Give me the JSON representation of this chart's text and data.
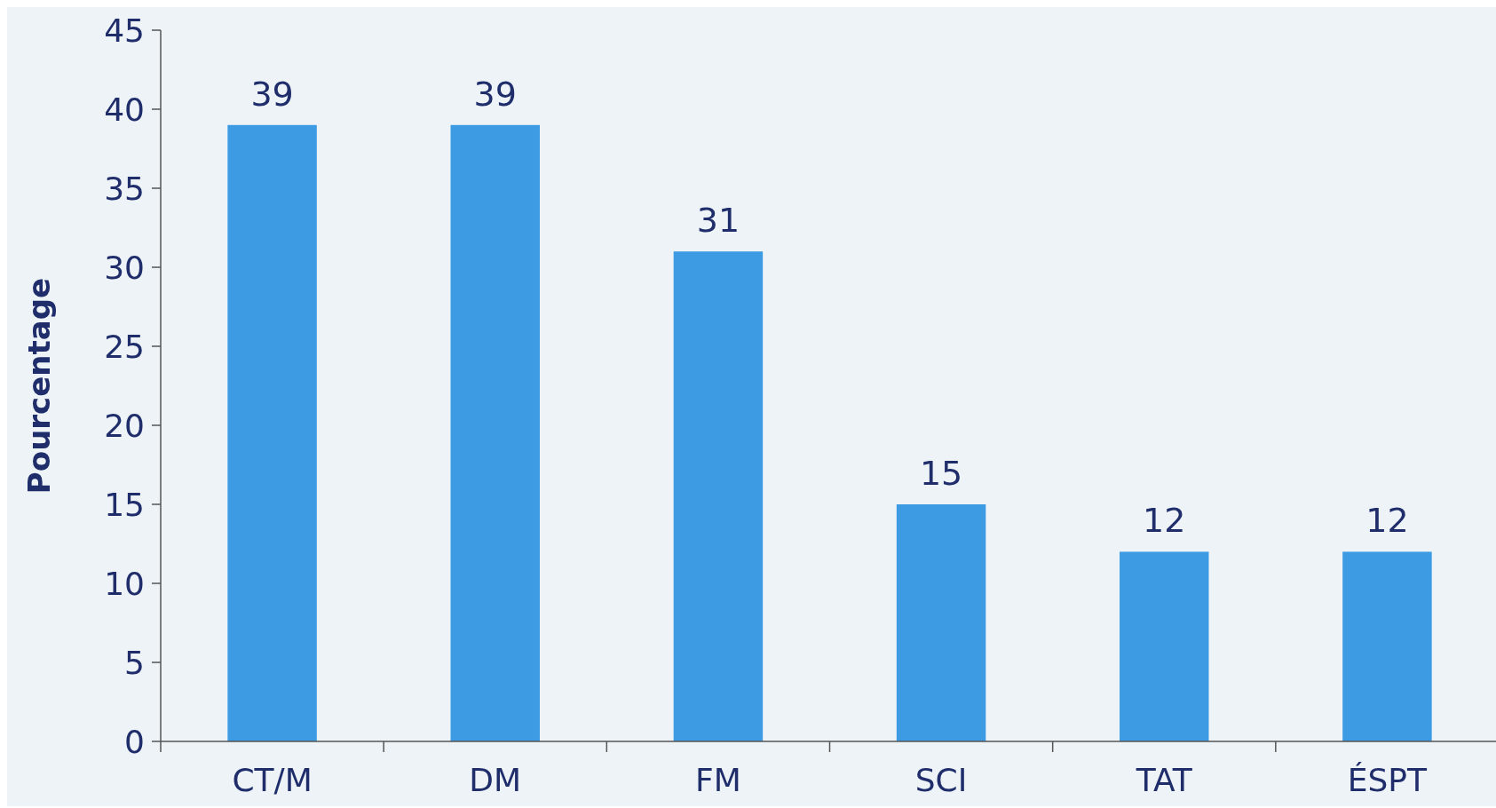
{
  "chart_data": {
    "type": "bar",
    "ylabel": "Pourcentage",
    "categories": [
      "CT/M",
      "DM",
      "FM",
      "SCI",
      "TAT",
      "ÉSPT"
    ],
    "values": [
      39,
      39,
      31,
      15,
      12,
      12
    ],
    "color": "#3d9be3",
    "ylim": [
      0,
      45
    ],
    "yticks": [
      0,
      5,
      10,
      15,
      20,
      25,
      30,
      35,
      40,
      45
    ],
    "data_labels": true
  }
}
